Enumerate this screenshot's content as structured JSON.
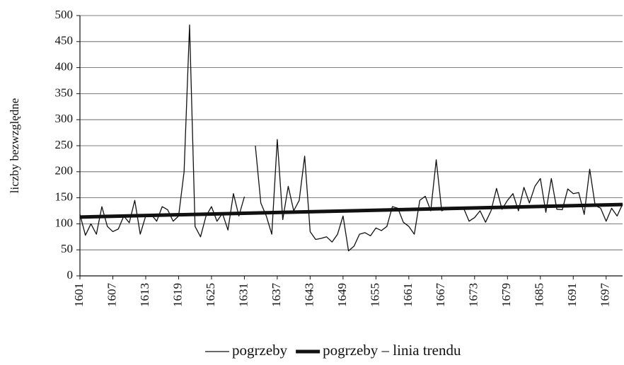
{
  "chart_data": {
    "type": "line",
    "y_label": "liczby bezwzględne",
    "x": [
      1601,
      1602,
      1603,
      1604,
      1605,
      1606,
      1607,
      1608,
      1609,
      1610,
      1611,
      1612,
      1613,
      1614,
      1615,
      1616,
      1617,
      1618,
      1619,
      1620,
      1621,
      1622,
      1623,
      1624,
      1625,
      1626,
      1627,
      1628,
      1629,
      1630,
      1631,
      1632,
      1633,
      1634,
      1635,
      1636,
      1637,
      1638,
      1639,
      1640,
      1641,
      1642,
      1643,
      1644,
      1645,
      1646,
      1647,
      1648,
      1649,
      1650,
      1651,
      1652,
      1653,
      1654,
      1655,
      1656,
      1657,
      1658,
      1659,
      1660,
      1661,
      1662,
      1663,
      1664,
      1665,
      1666,
      1667,
      1668,
      1669,
      1670,
      1671,
      1672,
      1673,
      1674,
      1675,
      1676,
      1677,
      1678,
      1679,
      1680,
      1681,
      1682,
      1683,
      1684,
      1685,
      1686,
      1687,
      1688,
      1689,
      1690,
      1691,
      1692,
      1693,
      1694,
      1695,
      1696,
      1697,
      1698,
      1699,
      1700
    ],
    "series": [
      {
        "name": "pogrzeby",
        "color": "#111111",
        "width": 1.3,
        "values": [
          118,
          78,
          100,
          80,
          133,
          95,
          85,
          90,
          115,
          102,
          145,
          80,
          115,
          118,
          105,
          133,
          127,
          105,
          115,
          200,
          482,
          95,
          75,
          115,
          133,
          105,
          120,
          88,
          158,
          115,
          152,
          null,
          250,
          140,
          115,
          80,
          262,
          108,
          172,
          125,
          145,
          230,
          85,
          70,
          72,
          75,
          65,
          80,
          115,
          48,
          57,
          80,
          83,
          77,
          92,
          87,
          95,
          133,
          130,
          103,
          95,
          80,
          145,
          153,
          125,
          223,
          125,
          130,
          128,
          130,
          130,
          105,
          112,
          125,
          103,
          125,
          168,
          128,
          145,
          158,
          125,
          170,
          140,
          172,
          187,
          122,
          187,
          128,
          127,
          167,
          158,
          160,
          118,
          205,
          135,
          130,
          105,
          130,
          115,
          138
        ]
      },
      {
        "name": "pogrzeby – linia trendu",
        "color": "#111111",
        "width": 5,
        "x": [
          1601,
          1700
        ],
        "values": [
          113,
          137
        ]
      }
    ],
    "xlim": [
      1601,
      1700
    ],
    "xticks": [
      1601,
      1607,
      1613,
      1619,
      1625,
      1631,
      1637,
      1643,
      1649,
      1655,
      1661,
      1667,
      1673,
      1679,
      1685,
      1691,
      1697
    ],
    "ylim": [
      0,
      500
    ],
    "yticks": [
      0,
      50,
      100,
      150,
      200,
      250,
      300,
      350,
      400,
      450,
      500
    ],
    "grid": true
  }
}
